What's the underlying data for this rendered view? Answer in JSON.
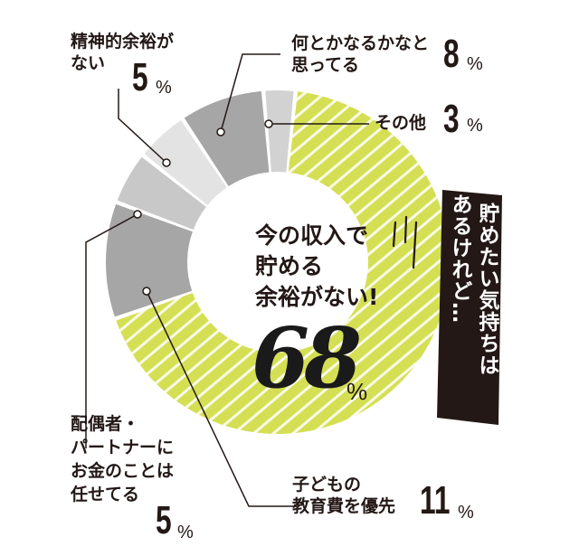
{
  "chart_data": {
    "type": "pie",
    "center_text": [
      "今の収入で",
      "貯める",
      "余裕がない!"
    ],
    "center_value": "68",
    "center_unit": "%",
    "side_note": [
      "貯めたい気持ちは",
      "あるけれど…"
    ],
    "slices": [
      {
        "lines": [
          "今の収入で",
          "貯める",
          "余裕がない!"
        ],
        "value": 68,
        "color": "#d5df54",
        "pattern": "stripes"
      },
      {
        "lines": [
          "子どもの",
          "教育費を優先"
        ],
        "value": 11,
        "color": "#a6a6a6"
      },
      {
        "lines": [
          "配偶者・",
          "パートナーに",
          "お金のことは",
          "任せてる"
        ],
        "value": 5,
        "color": "#c8c8c8"
      },
      {
        "lines": [
          "精神的余裕が",
          "ない"
        ],
        "value": 5,
        "color": "#e3e3e3"
      },
      {
        "lines": [
          "何とかなるかなと",
          "思ってる"
        ],
        "value": 8,
        "color": "#a6a6a6"
      },
      {
        "lines": [
          "その他"
        ],
        "value": 3,
        "color": "#d2d2d2"
      }
    ],
    "unit": "%"
  },
  "labels": {
    "seishin": {
      "line1": "精神的余裕が",
      "line2": "ない",
      "value": "5",
      "unit": "%"
    },
    "nantoka": {
      "line1": "何とかなるかなと",
      "line2": "思ってる",
      "value": "8",
      "unit": "%"
    },
    "sonota": {
      "line1": "その他",
      "value": "3",
      "unit": "%"
    },
    "kodomo": {
      "line1": "子どもの",
      "line2": "教育費を優先",
      "value": "11",
      "unit": "%"
    },
    "haiguusha": {
      "line1": "配偶者・",
      "line2": "パートナーに",
      "line3": "お金のことは",
      "line4": "任せてる",
      "value": "5",
      "unit": "%"
    }
  },
  "colors": {
    "stripe_fill": "#d5df54",
    "gray_dark": "#a6a6a6",
    "gray_mid": "#c8c8c8",
    "gray_light": "#e3e3e3",
    "note_bg": "#231815"
  }
}
